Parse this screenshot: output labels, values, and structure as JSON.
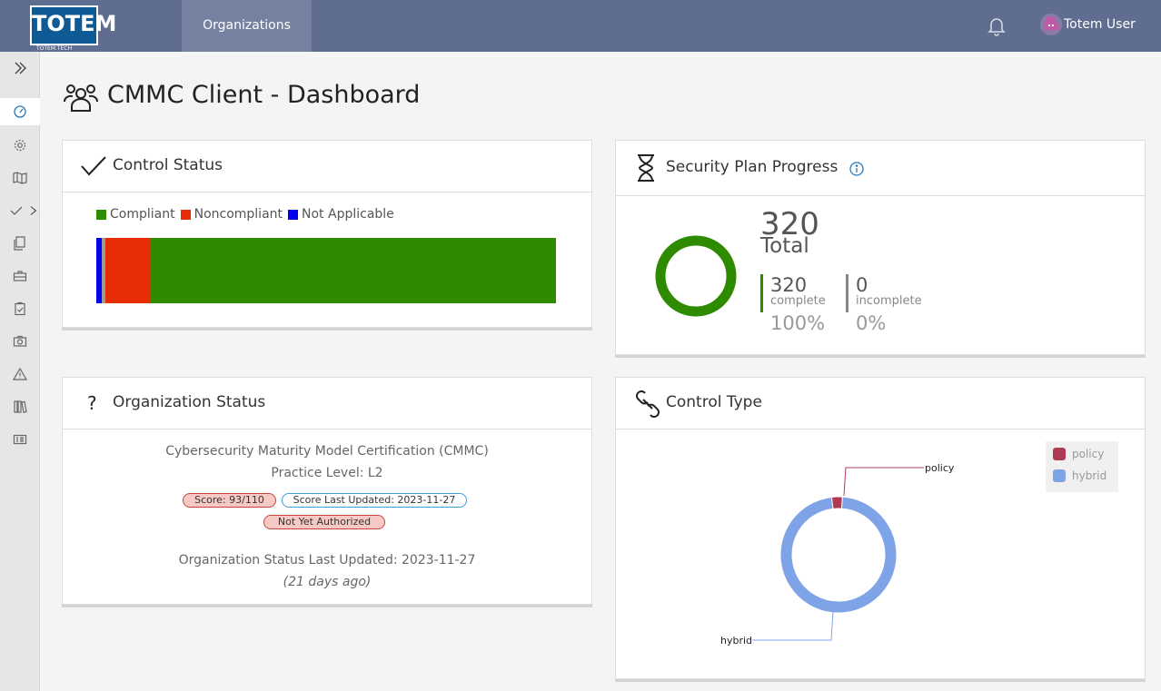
{
  "header": {
    "logo_text": "TOTEM",
    "logo_sub": "TOTEM.TECH",
    "nav_organizations": "Organizations",
    "user_name": "Totem User"
  },
  "page": {
    "title": "CMMC Client - Dashboard"
  },
  "control_status": {
    "title": "Control Status",
    "legend": [
      {
        "label": "Compliant",
        "color": "#2e8b00"
      },
      {
        "label": "Noncompliant",
        "color": "#e62d06"
      },
      {
        "label": "Not Applicable",
        "color": "#0000ee"
      }
    ]
  },
  "security_plan": {
    "title": "Security Plan Progress",
    "total_value": "320",
    "total_label": "Total",
    "complete_value": "320",
    "complete_label": "complete",
    "complete_pct": "100%",
    "incomplete_value": "0",
    "incomplete_label": "incomplete",
    "incomplete_pct": "0%"
  },
  "org_status": {
    "title": "Organization Status",
    "line1": "Cybersecurity Maturity Model Certification (CMMC)",
    "line2": "Practice Level: L2",
    "score_badge": "Score: 93/110",
    "score_updated_badge": "Score Last Updated: 2023-11-27",
    "auth_badge": "Not Yet Authorized",
    "status_updated": "Organization Status Last Updated: 2023-11-27",
    "ago": "(21 days ago)"
  },
  "control_type": {
    "title": "Control Type",
    "legend": [
      {
        "label": "policy",
        "color": "#b03a54"
      },
      {
        "label": "hybrid",
        "color": "#7ea3e6"
      }
    ]
  },
  "chart_data": [
    {
      "type": "bar",
      "orientation": "horizontal-stacked",
      "series": [
        {
          "name": "Not Applicable",
          "values": [
            2
          ]
        },
        {
          "name": "Noncompliant",
          "values": [
            10
          ]
        },
        {
          "name": "Compliant",
          "values": [
            89
          ]
        }
      ],
      "other_segment_color": "#9a9a9a",
      "legend_position": "top-left"
    },
    {
      "type": "pie",
      "subtype": "donut",
      "labels": [
        "policy",
        "hybrid"
      ],
      "values": [
        3,
        97
      ],
      "colors": [
        "#b03a54",
        "#7ea3e6"
      ],
      "legend_position": "top-right"
    }
  ]
}
